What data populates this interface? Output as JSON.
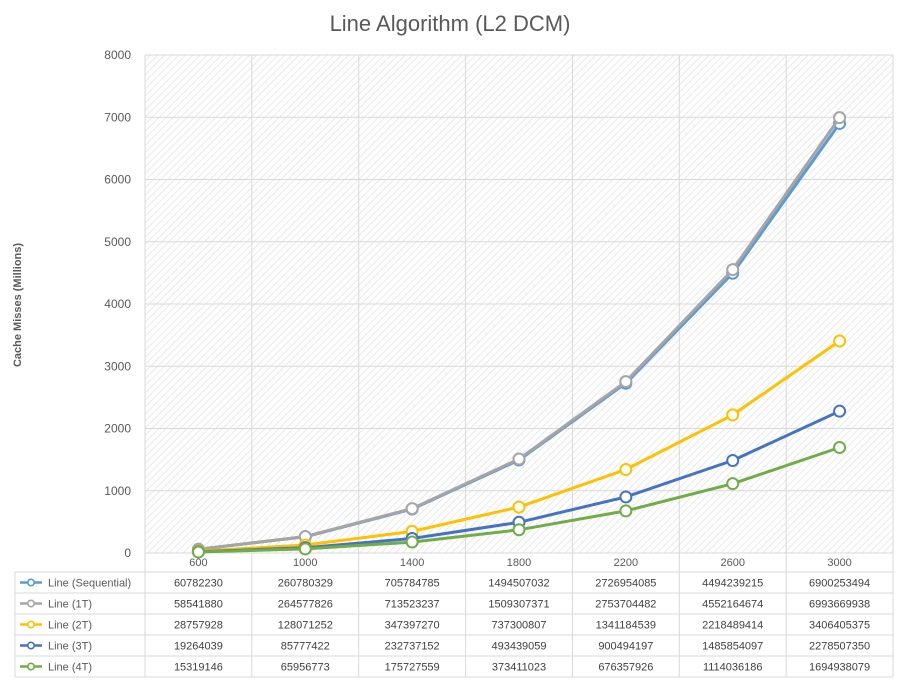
{
  "chart_data": {
    "type": "line",
    "title": "Line Algorithm (L2 DCM)",
    "xlabel": "",
    "ylabel": "Cache Misses (Millions)",
    "ylim": [
      0,
      8000
    ],
    "yticks": [
      "0",
      "1000",
      "2000",
      "3000",
      "4000",
      "5000",
      "6000",
      "7000",
      "8000"
    ],
    "categories": [
      "600",
      "1000",
      "1400",
      "1800",
      "2200",
      "2600",
      "3000"
    ],
    "grid": true,
    "legend": "data-table",
    "series": [
      {
        "name": "Line (Sequential)",
        "color": "#5B9BD5",
        "values": [
          60.78223,
          260.780329,
          705.784785,
          1494.507032,
          2726.954085,
          4494.239215,
          6900.253494
        ],
        "table": [
          "60782230",
          "260780329",
          "705784785",
          "1494507032",
          "2726954085",
          "4494239215",
          "6900253494"
        ]
      },
      {
        "name": "Line (1T)",
        "color": "#A5A5A5",
        "values": [
          58.54188,
          264.577826,
          713.523237,
          1509.307371,
          2753.704482,
          4552.164674,
          6993.669938
        ],
        "table": [
          "58541880",
          "264577826",
          "713523237",
          "1509307371",
          "2753704482",
          "4552164674",
          "6993669938"
        ]
      },
      {
        "name": "Line (2T)",
        "color": "#FFC000",
        "values": [
          28.757928,
          128.071252,
          347.39727,
          737.300807,
          1341.184539,
          2218.489414,
          3406.405375
        ],
        "table": [
          "28757928",
          "128071252",
          "347397270",
          "737300807",
          "1341184539",
          "2218489414",
          "3406405375"
        ]
      },
      {
        "name": "Line (3T)",
        "color": "#4472C4",
        "values": [
          19.264039,
          85.777422,
          232.737152,
          493.439059,
          900.494197,
          1485.854097,
          2278.50735
        ],
        "table": [
          "19264039",
          "85777422",
          "232737152",
          "493439059",
          "900494197",
          "1485854097",
          "2278507350"
        ]
      },
      {
        "name": "Line (4T)",
        "color": "#70AD47",
        "values": [
          15.319146,
          65.956773,
          175.727559,
          373.411023,
          676.357926,
          1114.036186,
          1694.938079
        ],
        "table": [
          "15319146",
          "65956773",
          "175727559",
          "373411023",
          "676357926",
          "1114036186",
          "1694938079"
        ]
      }
    ]
  }
}
